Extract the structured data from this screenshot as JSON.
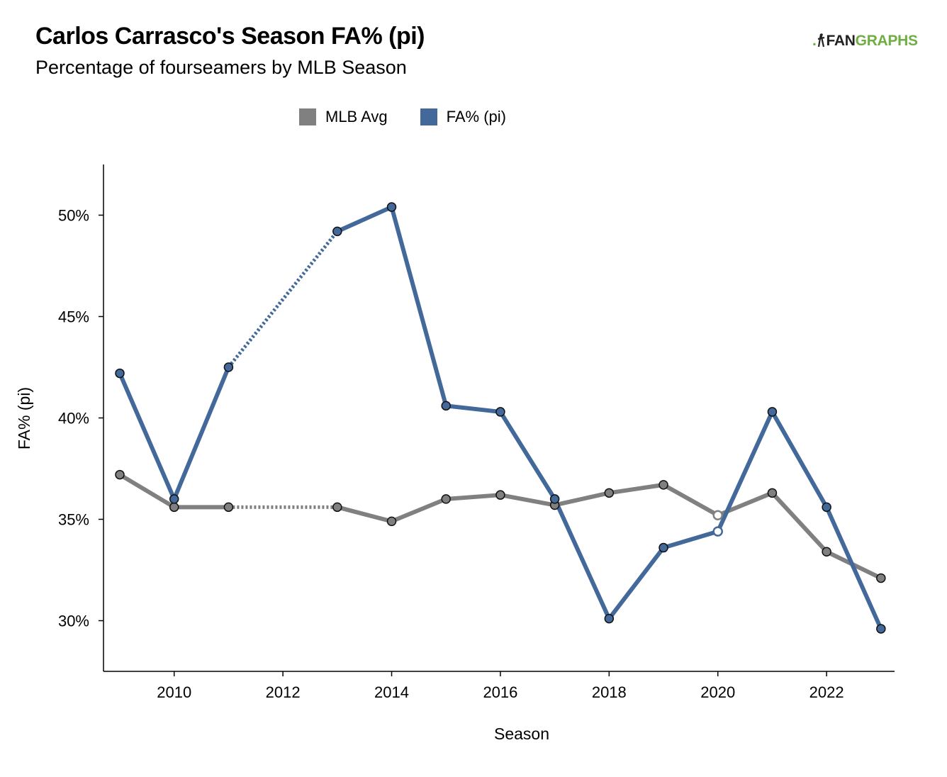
{
  "title": "Carlos Carrasco's Season FA% (pi)",
  "subtitle": "Percentage of fourseamers by MLB Season",
  "logo": {
    "part1": ".",
    "part2": "FAN",
    "part3": "GRAPHS"
  },
  "colors": {
    "mlb": "#808080",
    "player": "#43699b",
    "missing_marker": "#ffffff"
  },
  "chart_data": {
    "type": "line",
    "xlabel": "Season",
    "ylabel": "FA% (pi)",
    "xlim": [
      2008.7,
      2023.25
    ],
    "ylim": [
      27.5,
      52.5
    ],
    "x_ticks": [
      2010,
      2012,
      2014,
      2016,
      2018,
      2020,
      2022
    ],
    "y_ticks": [
      30,
      35,
      40,
      45,
      50
    ],
    "y_tick_suffix": "%",
    "grid": false,
    "legend": {
      "placement": "top-center"
    },
    "series": [
      {
        "name": "MLB Avg",
        "color": "#808080",
        "points": [
          {
            "x": 2009,
            "y": 37.2
          },
          {
            "x": 2010,
            "y": 35.6
          },
          {
            "x": 2011,
            "y": 35.6
          },
          {
            "x": 2013,
            "y": 35.6
          },
          {
            "x": 2014,
            "y": 34.9
          },
          {
            "x": 2015,
            "y": 36.0
          },
          {
            "x": 2016,
            "y": 36.2
          },
          {
            "x": 2017,
            "y": 35.7
          },
          {
            "x": 2018,
            "y": 36.3
          },
          {
            "x": 2019,
            "y": 36.7
          },
          {
            "x": 2020,
            "y": 35.2,
            "hollow": true
          },
          {
            "x": 2021,
            "y": 36.3
          },
          {
            "x": 2022,
            "y": 33.4
          },
          {
            "x": 2023,
            "y": 32.1
          }
        ],
        "dashed_gaps": [
          [
            2011,
            2013
          ]
        ]
      },
      {
        "name": "FA% (pi)",
        "color": "#43699b",
        "points": [
          {
            "x": 2009,
            "y": 42.2
          },
          {
            "x": 2010,
            "y": 36.0
          },
          {
            "x": 2011,
            "y": 42.5
          },
          {
            "x": 2013,
            "y": 49.2
          },
          {
            "x": 2014,
            "y": 50.4
          },
          {
            "x": 2015,
            "y": 40.6
          },
          {
            "x": 2016,
            "y": 40.3
          },
          {
            "x": 2017,
            "y": 36.0
          },
          {
            "x": 2018,
            "y": 30.1
          },
          {
            "x": 2019,
            "y": 33.6
          },
          {
            "x": 2020,
            "y": 34.4,
            "hollow": true
          },
          {
            "x": 2021,
            "y": 40.3
          },
          {
            "x": 2022,
            "y": 35.6
          },
          {
            "x": 2023,
            "y": 29.6
          }
        ],
        "dashed_gaps": [
          [
            2011,
            2013
          ]
        ]
      }
    ]
  }
}
